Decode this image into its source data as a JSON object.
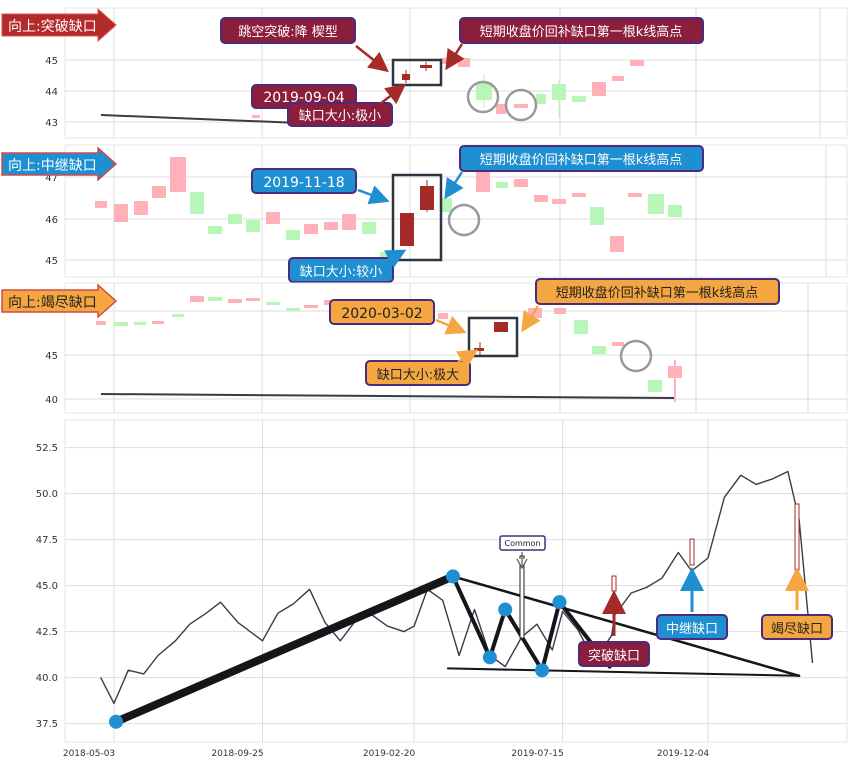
{
  "colors": {
    "up_faint": "#ffb0b8",
    "down_faint": "#b8f5b8",
    "gap_red": "#a52a2a",
    "price_line": "#3a3a48",
    "dot_blue": "#1e8fd0",
    "arrow_red": "#a52a2a",
    "arrow_blue": "#1e8fd0",
    "arrow_orange": "#f4a640",
    "box_dark": "#2e3440",
    "grid": "#dddddd",
    "label_purple_border": "#4b2b7a"
  },
  "panel1": {
    "banner": "向上:突破缺口",
    "yticks": [
      "45",
      "44",
      "43"
    ],
    "callout_pattern": "跳空突破:降   楔型",
    "callout_date": "2019-09-04",
    "callout_size": "缺口大小:极小",
    "callout_high": "短期收盘价回补缺口第一根k线高点"
  },
  "panel2": {
    "banner": "向上:中继缺口",
    "yticks": [
      "47",
      "46",
      "45"
    ],
    "callout_date": "2019-11-18",
    "callout_size": "缺口大小:较小",
    "callout_high": "短期收盘价回补缺口第一根k线高点"
  },
  "panel3": {
    "banner": "向上:竭尽缺口",
    "yticks": [
      "45",
      "40"
    ],
    "callout_date": "2020-03-02",
    "callout_size": "缺口大小:极大",
    "callout_high": "短期收盘价回补缺口第一根k线高点"
  },
  "main": {
    "common_label": "Common",
    "label_breakaway": "突破缺口",
    "label_runaway": "中继缺口",
    "label_exhaustion": "竭尽缺口"
  },
  "chart_data": [
    {
      "type": "line",
      "title": "",
      "xlabel": "",
      "ylabel": "",
      "x_tick_labels": [
        "2018-05-03",
        "2018-09-25",
        "2019-02-20",
        "2019-07-15",
        "2019-12-04"
      ],
      "ylim": [
        36.5,
        54
      ],
      "y_ticks": [
        37.5,
        40.0,
        42.5,
        45.0,
        47.5,
        50.0,
        52.5
      ],
      "grid": true,
      "series": [
        {
          "x": [
            "2018-04-20",
            "2018-05-03",
            "2018-05-17",
            "2018-06-01",
            "2018-06-15",
            "2018-07-02",
            "2018-07-16",
            "2018-08-01",
            "2018-08-15",
            "2018-09-01",
            "2018-09-25",
            "2018-10-10",
            "2018-10-25",
            "2018-11-10",
            "2018-11-25",
            "2018-12-10",
            "2018-12-25",
            "2019-01-10",
            "2019-01-25",
            "2019-02-10",
            "2019-02-20",
            "2019-03-05",
            "2019-03-20",
            "2019-04-05",
            "2019-04-20",
            "2019-05-05",
            "2019-05-20",
            "2019-06-05",
            "2019-06-20",
            "2019-07-05",
            "2019-07-15",
            "2019-07-30",
            "2019-08-15",
            "2019-09-01",
            "2019-09-04",
            "2019-09-20",
            "2019-10-05",
            "2019-10-20",
            "2019-11-05",
            "2019-11-18",
            "2019-12-04",
            "2019-12-20",
            "2020-01-05",
            "2020-01-20",
            "2020-02-05",
            "2020-02-20",
            "2020-03-02",
            "2020-03-15"
          ],
          "y": [
            40.0,
            38.6,
            40.4,
            40.2,
            41.2,
            42.0,
            42.9,
            43.5,
            44.1,
            43.0,
            42.0,
            43.5,
            44.0,
            44.8,
            43.0,
            42.0,
            43.1,
            43.4,
            42.8,
            42.5,
            42.8,
            44.8,
            44.2,
            41.2,
            43.7,
            41.2,
            40.6,
            42.2,
            42.9,
            41.5,
            43.6,
            42.6,
            40.9,
            42.3,
            43.4,
            44.6,
            44.9,
            45.4,
            46.8,
            45.8,
            46.5,
            49.8,
            51.0,
            50.5,
            50.8,
            51.2,
            48.6,
            40.8
          ]
        }
      ],
      "pattern_points": {
        "x": [
          "2018-05-05",
          "2019-03-30",
          "2019-05-05",
          "2019-05-20",
          "2019-06-25",
          "2019-07-12"
        ],
        "y": [
          37.6,
          45.5,
          41.1,
          43.7,
          40.4,
          44.1
        ]
      },
      "pattern_lines": [
        {
          "x": [
            "2018-05-05",
            "2019-03-30"
          ],
          "y": [
            37.6,
            45.5
          ]
        },
        {
          "x": [
            "2019-03-30",
            "2019-05-05",
            "2019-05-20",
            "2019-06-25",
            "2019-07-12",
            "2019-08-30"
          ],
          "y": [
            45.5,
            41.1,
            43.7,
            40.4,
            44.1,
            40.6
          ]
        },
        {
          "x": [
            "2019-03-30",
            "2020-03-02"
          ],
          "y": [
            45.5,
            40.1
          ]
        },
        {
          "x": [
            "2019-03-25",
            "2020-03-02"
          ],
          "y": [
            40.5,
            40.1
          ]
        }
      ],
      "annotations": [
        "Common",
        "突破缺口",
        "中继缺口",
        "竭尽缺口"
      ]
    }
  ]
}
